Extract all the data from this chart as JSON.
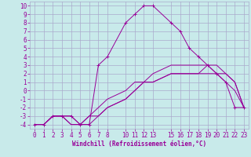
{
  "background_color": "#c8eaea",
  "grid_color": "#aaaacc",
  "line_color": "#990099",
  "xlabel": "Windchill (Refroidissement éolien,°C)",
  "xlim": [
    -0.5,
    23.5
  ],
  "ylim": [
    -4.5,
    10.5
  ],
  "xticks": [
    0,
    1,
    2,
    3,
    4,
    5,
    6,
    7,
    8,
    10,
    11,
    12,
    13,
    15,
    16,
    17,
    18,
    19,
    20,
    21,
    22,
    23
  ],
  "yticks": [
    -4,
    -3,
    -2,
    -1,
    0,
    1,
    2,
    3,
    4,
    5,
    6,
    7,
    8,
    9,
    10
  ],
  "line1_x": [
    0,
    1,
    2,
    3,
    4,
    5,
    6,
    7,
    8,
    10,
    11,
    12,
    13,
    15,
    16,
    17,
    18,
    19,
    20,
    21,
    22,
    23
  ],
  "line1_y": [
    -4,
    -4,
    -3,
    -3,
    -3,
    -4,
    -4,
    3,
    4,
    8,
    9,
    10,
    10,
    8,
    7,
    5,
    4,
    3,
    2,
    1,
    -2,
    -2
  ],
  "line2_x": [
    0,
    1,
    2,
    3,
    4,
    5,
    6,
    7,
    8,
    10,
    11,
    12,
    13,
    15,
    16,
    17,
    18,
    19,
    20,
    21,
    22,
    23
  ],
  "line2_y": [
    -4,
    -4,
    -3,
    -3,
    -3,
    -4,
    -3,
    -2,
    -1,
    0,
    1,
    1,
    2,
    3,
    3,
    3,
    3,
    3,
    3,
    2,
    1,
    -2
  ],
  "line3_x": [
    0,
    1,
    2,
    3,
    4,
    5,
    6,
    7,
    8,
    10,
    11,
    12,
    13,
    15,
    16,
    17,
    18,
    19,
    20,
    21,
    22,
    23
  ],
  "line3_y": [
    -4,
    -4,
    -3,
    -3,
    -4,
    -4,
    -3,
    -3,
    -2,
    -1,
    0,
    1,
    1,
    2,
    2,
    2,
    2,
    3,
    2,
    2,
    1,
    -2
  ],
  "line4_x": [
    0,
    1,
    2,
    3,
    4,
    5,
    6,
    7,
    8,
    10,
    11,
    12,
    13,
    15,
    16,
    17,
    18,
    19,
    20,
    21,
    22,
    23
  ],
  "line4_y": [
    -4,
    -4,
    -3,
    -3,
    -4,
    -4,
    -4,
    -3,
    -2,
    -1,
    0,
    1,
    1,
    2,
    2,
    2,
    2,
    2,
    2,
    1,
    0,
    -2
  ],
  "tick_fontsize": 5.5,
  "xlabel_fontsize": 5.5,
  "fig_width": 3.2,
  "fig_height": 2.0,
  "dpi": 100
}
